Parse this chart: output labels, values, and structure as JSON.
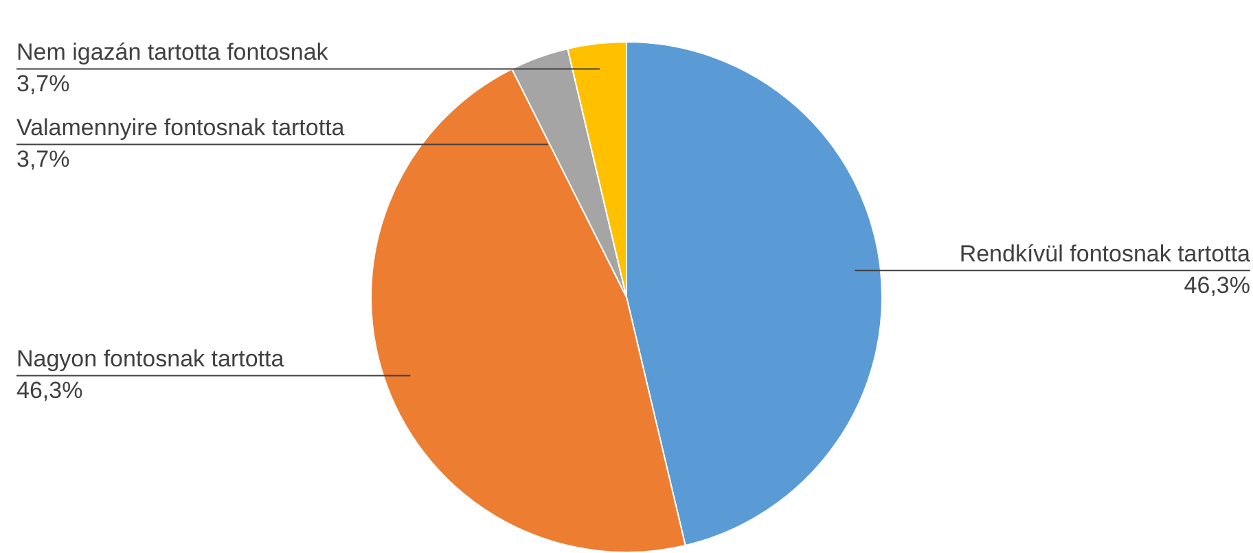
{
  "chart_data": {
    "type": "pie",
    "categories": [
      "Rendkívül fontosnak tartotta",
      "Nagyon fontosnak tartotta",
      "Valamennyire fontosnak tartotta",
      "Nem igazán tartotta fontosnak"
    ],
    "values": [
      46.3,
      46.3,
      3.7,
      3.7
    ],
    "value_labels": [
      "46,3%",
      "46,3%",
      "3,7%",
      "3,7%"
    ],
    "colors": [
      "#5b9bd5",
      "#ed7d31",
      "#a5a5a5",
      "#ffc000"
    ],
    "legend": false
  }
}
